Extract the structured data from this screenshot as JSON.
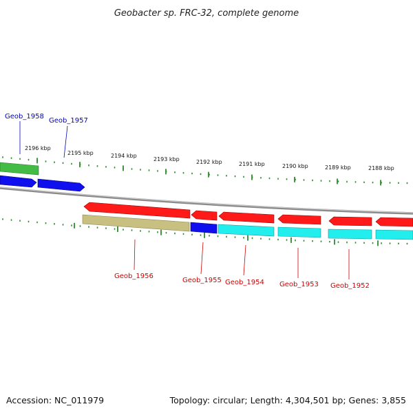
{
  "title": "Geobacter sp. FRC-32, complete genome",
  "footer": {
    "accession": "Accession: NC_011979",
    "summary": "Topology: circular; Length: 4,304,501 bp; Genes: 3,855"
  },
  "colors": {
    "forward_label": "#0000bb",
    "reverse_label": "#cc0000",
    "tick": "#2e8b2e",
    "backbone": "#8c8c8c",
    "red_gene": "#ff1a1a",
    "blue_gene": "#1010ee",
    "cyan_gene": "#22eeee",
    "khaki_gene": "#c8c080",
    "green_gene": "#44bb44"
  },
  "scale": {
    "labels": [
      "2196 kbp",
      "2195 kbp",
      "2194 kbp",
      "2193 kbp",
      "2192 kbp",
      "2191 kbp",
      "2190 kbp",
      "2189 kbp",
      "2188 kbp"
    ]
  },
  "gene_labels": {
    "forward": [
      "Geob_1958",
      "Geob_1957"
    ],
    "reverse": [
      "Geob_1956",
      "Geob_1955",
      "Geob_1954",
      "Geob_1953",
      "Geob_1952"
    ]
  }
}
